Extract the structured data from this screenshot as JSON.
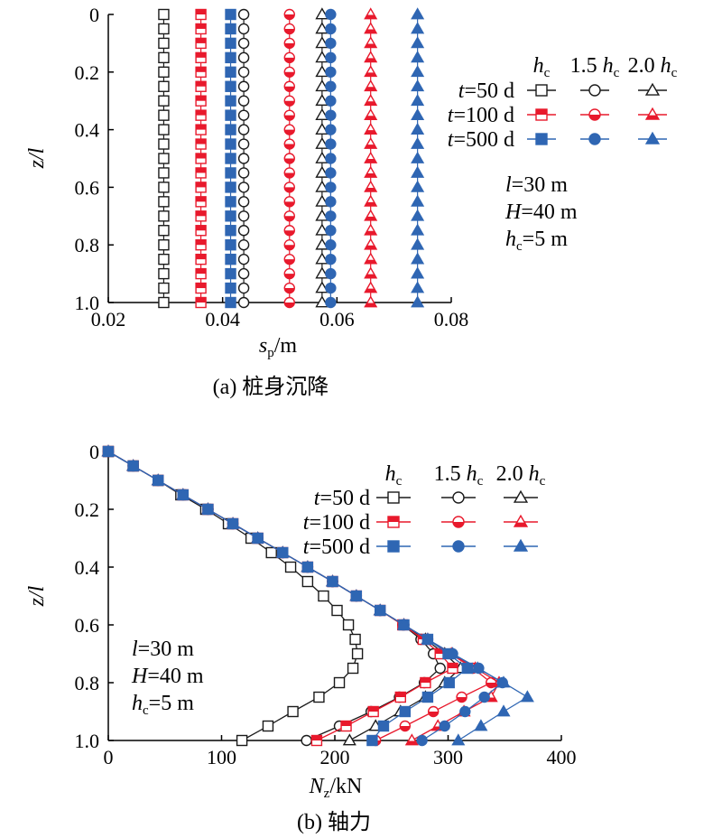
{
  "colors": {
    "t50": "#1a1a1a",
    "t100": "#e8192c",
    "t500": "#2f66b3"
  },
  "chart_data": [
    {
      "type": "scatter",
      "caption": "(a) 桩身沉降",
      "ylabel": "z/l",
      "xlabel": "s_p/m",
      "xlim": [
        0.02,
        0.08
      ],
      "ylim": [
        1.0,
        0
      ],
      "xticks": [
        "0.02",
        "0.04",
        "0.06",
        "0.08"
      ],
      "yticks": [
        "0",
        "0.2",
        "0.4",
        "0.6",
        "0.8",
        "1.0"
      ],
      "z": [
        0,
        0.05,
        0.1,
        0.15,
        0.2,
        0.25,
        0.3,
        0.35,
        0.4,
        0.45,
        0.5,
        0.55,
        0.6,
        0.65,
        0.7,
        0.75,
        0.8,
        0.85,
        0.9,
        0.95,
        1.0
      ],
      "series": [
        {
          "name": "t=50 d, h_c",
          "time": "t50",
          "marker": "square",
          "filled": "none",
          "value": 0.0297
        },
        {
          "name": "t=50 d, 1.5 h_c",
          "time": "t50",
          "marker": "circle",
          "filled": "none",
          "value": 0.0437
        },
        {
          "name": "t=50 d, 2.0 h_c",
          "time": "t50",
          "marker": "triangle",
          "filled": "none",
          "value": 0.0574
        },
        {
          "name": "t=100 d, h_c",
          "time": "t100",
          "marker": "square",
          "filled": "half",
          "value": 0.0362
        },
        {
          "name": "t=100 d, 1.5 h_c",
          "time": "t100",
          "marker": "circle",
          "filled": "half",
          "value": 0.0517
        },
        {
          "name": "t=100 d, 2.0 h_c",
          "time": "t100",
          "marker": "triangle",
          "filled": "half",
          "value": 0.0659
        },
        {
          "name": "t=500 d, h_c",
          "time": "t500",
          "marker": "square",
          "filled": "full",
          "value": 0.0414
        },
        {
          "name": "t=500 d, 1.5 h_c",
          "time": "t500",
          "marker": "circle",
          "filled": "full",
          "value": 0.0589
        },
        {
          "name": "t=500 d, 2.0 h_c",
          "time": "t500",
          "marker": "triangle",
          "filled": "full",
          "value": 0.0741
        }
      ],
      "legend": {
        "columns": [
          "h_c",
          "1.5 h_c",
          "2.0 h_c"
        ],
        "rows": [
          "t=50 d",
          "t=100 d",
          "t=500 d"
        ]
      },
      "annotation": [
        "l=30 m",
        "H=40 m",
        "h_c=5 m"
      ]
    },
    {
      "type": "line",
      "caption": "(b) 轴力",
      "ylabel": "z/l",
      "xlabel": "N_z/kN",
      "xlim": [
        0,
        400
      ],
      "ylim": [
        1.0,
        0
      ],
      "xticks": [
        "0",
        "100",
        "200",
        "300",
        "400"
      ],
      "yticks": [
        "0",
        "0.2",
        "0.4",
        "0.6",
        "0.8",
        "1.0"
      ],
      "series": [
        {
          "name": "t=50 d, h_c",
          "time": "t50",
          "marker": "square",
          "filled": "none",
          "points": [
            [
              0,
              0
            ],
            [
              22,
              0.05
            ],
            [
              44,
              0.1
            ],
            [
              64,
              0.15
            ],
            [
              86,
              0.2
            ],
            [
              106,
              0.25
            ],
            [
              126,
              0.3
            ],
            [
              144,
              0.35
            ],
            [
              161,
              0.4
            ],
            [
              176,
              0.45
            ],
            [
              190,
              0.5
            ],
            [
              202,
              0.55
            ],
            [
              212,
              0.6
            ],
            [
              218,
              0.65
            ],
            [
              220,
              0.7
            ],
            [
              216,
              0.75
            ],
            [
              204,
              0.8
            ],
            [
              186,
              0.85
            ],
            [
              163,
              0.9
            ],
            [
              141,
              0.95
            ],
            [
              118,
              1.0
            ]
          ]
        },
        {
          "name": "t=50 d, 1.5 h_c",
          "time": "t50",
          "marker": "circle",
          "filled": "none",
          "points": [
            [
              0,
              0
            ],
            [
              22,
              0.05
            ],
            [
              44,
              0.1
            ],
            [
              66,
              0.15
            ],
            [
              88,
              0.2
            ],
            [
              110,
              0.25
            ],
            [
              132,
              0.3
            ],
            [
              154,
              0.35
            ],
            [
              176,
              0.4
            ],
            [
              198,
              0.45
            ],
            [
              219,
              0.5
            ],
            [
              240,
              0.55
            ],
            [
              260,
              0.6
            ],
            [
              276,
              0.65
            ],
            [
              287,
              0.7
            ],
            [
              293,
              0.75
            ],
            [
              279,
              0.8
            ],
            [
              257,
              0.85
            ],
            [
              232,
              0.9
            ],
            [
              204,
              0.95
            ],
            [
              175,
              1.0
            ]
          ]
        },
        {
          "name": "t=50 d, 2.0 h_c",
          "time": "t50",
          "marker": "triangle",
          "filled": "none",
          "points": [
            [
              0,
              0
            ],
            [
              22,
              0.05
            ],
            [
              44,
              0.1
            ],
            [
              66,
              0.15
            ],
            [
              88,
              0.2
            ],
            [
              110,
              0.25
            ],
            [
              132,
              0.3
            ],
            [
              154,
              0.35
            ],
            [
              176,
              0.4
            ],
            [
              198,
              0.45
            ],
            [
              219,
              0.5
            ],
            [
              240,
              0.55
            ],
            [
              261,
              0.6
            ],
            [
              280,
              0.65
            ],
            [
              297,
              0.7
            ],
            [
              311,
              0.75
            ],
            [
              297,
              0.8
            ],
            [
              280,
              0.85
            ],
            [
              258,
              0.9
            ],
            [
              236,
              0.95
            ],
            [
              213,
              1.0
            ]
          ]
        },
        {
          "name": "t=100 d, h_c",
          "time": "t100",
          "marker": "square",
          "filled": "half",
          "points": [
            [
              0,
              0
            ],
            [
              22,
              0.05
            ],
            [
              44,
              0.1
            ],
            [
              66,
              0.15
            ],
            [
              88,
              0.2
            ],
            [
              110,
              0.25
            ],
            [
              132,
              0.3
            ],
            [
              154,
              0.35
            ],
            [
              176,
              0.4
            ],
            [
              198,
              0.45
            ],
            [
              219,
              0.5
            ],
            [
              240,
              0.55
            ],
            [
              260,
              0.6
            ],
            [
              278,
              0.65
            ],
            [
              293,
              0.7
            ],
            [
              304,
              0.75
            ],
            [
              280,
              0.8
            ],
            [
              258,
              0.85
            ],
            [
              234,
              0.9
            ],
            [
              210,
              0.95
            ],
            [
              184,
              1.0
            ]
          ]
        },
        {
          "name": "t=100 d, 1.5 h_c",
          "time": "t100",
          "marker": "circle",
          "filled": "half",
          "points": [
            [
              0,
              0
            ],
            [
              22,
              0.05
            ],
            [
              44,
              0.1
            ],
            [
              66,
              0.15
            ],
            [
              88,
              0.2
            ],
            [
              110,
              0.25
            ],
            [
              132,
              0.3
            ],
            [
              154,
              0.35
            ],
            [
              176,
              0.4
            ],
            [
              198,
              0.45
            ],
            [
              219,
              0.5
            ],
            [
              240,
              0.55
            ],
            [
              261,
              0.6
            ],
            [
              282,
              0.65
            ],
            [
              302,
              0.7
            ],
            [
              322,
              0.75
            ],
            [
              338,
              0.8
            ],
            [
              312,
              0.85
            ],
            [
              287,
              0.9
            ],
            [
              262,
              0.95
            ],
            [
              236,
              1.0
            ]
          ]
        },
        {
          "name": "t=100 d, 2.0 h_c",
          "time": "t100",
          "marker": "triangle",
          "filled": "half",
          "points": [
            [
              0,
              0
            ],
            [
              22,
              0.05
            ],
            [
              44,
              0.1
            ],
            [
              66,
              0.15
            ],
            [
              88,
              0.2
            ],
            [
              110,
              0.25
            ],
            [
              132,
              0.3
            ],
            [
              154,
              0.35
            ],
            [
              176,
              0.4
            ],
            [
              198,
              0.45
            ],
            [
              219,
              0.5
            ],
            [
              240,
              0.55
            ],
            [
              261,
              0.6
            ],
            [
              282,
              0.65
            ],
            [
              303,
              0.7
            ],
            [
              324,
              0.75
            ],
            [
              345,
              0.8
            ],
            [
              338,
              0.85
            ],
            [
              314,
              0.9
            ],
            [
              291,
              0.95
            ],
            [
              268,
              1.0
            ]
          ]
        },
        {
          "name": "t=500 d, h_c",
          "time": "t500",
          "marker": "square",
          "filled": "full",
          "points": [
            [
              0,
              0
            ],
            [
              22,
              0.05
            ],
            [
              44,
              0.1
            ],
            [
              66,
              0.15
            ],
            [
              88,
              0.2
            ],
            [
              110,
              0.25
            ],
            [
              132,
              0.3
            ],
            [
              154,
              0.35
            ],
            [
              176,
              0.4
            ],
            [
              198,
              0.45
            ],
            [
              219,
              0.5
            ],
            [
              240,
              0.55
            ],
            [
              261,
              0.6
            ],
            [
              282,
              0.65
            ],
            [
              300,
              0.7
            ],
            [
              317,
              0.75
            ],
            [
              301,
              0.8
            ],
            [
              282,
              0.85
            ],
            [
              262,
              0.9
            ],
            [
              243,
              0.95
            ],
            [
              233,
              1.0
            ]
          ]
        },
        {
          "name": "t=500 d, 1.5 h_c",
          "time": "t500",
          "marker": "circle",
          "filled": "full",
          "points": [
            [
              0,
              0
            ],
            [
              22,
              0.05
            ],
            [
              44,
              0.1
            ],
            [
              66,
              0.15
            ],
            [
              88,
              0.2
            ],
            [
              110,
              0.25
            ],
            [
              132,
              0.3
            ],
            [
              154,
              0.35
            ],
            [
              176,
              0.4
            ],
            [
              198,
              0.45
            ],
            [
              219,
              0.5
            ],
            [
              240,
              0.55
            ],
            [
              261,
              0.6
            ],
            [
              282,
              0.65
            ],
            [
              304,
              0.7
            ],
            [
              327,
              0.75
            ],
            [
              348,
              0.8
            ],
            [
              332,
              0.85
            ],
            [
              315,
              0.9
            ],
            [
              297,
              0.95
            ],
            [
              277,
              1.0
            ]
          ]
        },
        {
          "name": "t=500 d, 2.0 h_c",
          "time": "t500",
          "marker": "triangle",
          "filled": "full",
          "points": [
            [
              0,
              0
            ],
            [
              22,
              0.05
            ],
            [
              44,
              0.1
            ],
            [
              66,
              0.15
            ],
            [
              88,
              0.2
            ],
            [
              110,
              0.25
            ],
            [
              132,
              0.3
            ],
            [
              154,
              0.35
            ],
            [
              176,
              0.4
            ],
            [
              198,
              0.45
            ],
            [
              219,
              0.5
            ],
            [
              240,
              0.55
            ],
            [
              261,
              0.6
            ],
            [
              282,
              0.65
            ],
            [
              304,
              0.7
            ],
            [
              326,
              0.75
            ],
            [
              349,
              0.8
            ],
            [
              370,
              0.85
            ],
            [
              349,
              0.9
            ],
            [
              329,
              0.95
            ],
            [
              309,
              1.0
            ]
          ]
        }
      ],
      "legend": {
        "columns": [
          "h_c",
          "1.5 h_c",
          "2.0 h_c"
        ],
        "rows": [
          "t=50 d",
          "t=100 d",
          "t=500 d"
        ]
      },
      "annotation": [
        "l=30 m",
        "H=40 m",
        "h_c=5 m"
      ]
    }
  ]
}
